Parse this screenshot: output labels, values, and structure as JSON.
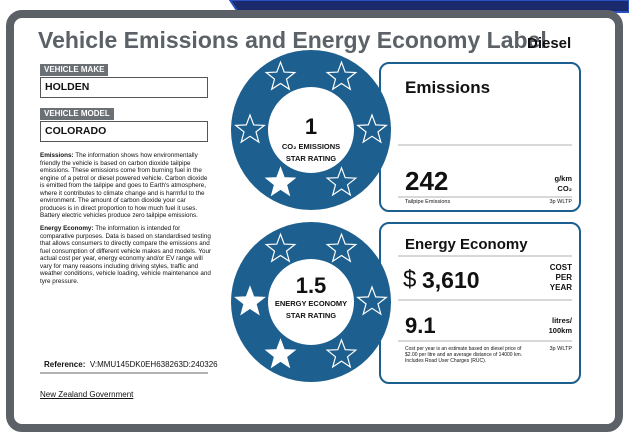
{
  "header": {
    "title": "Vehicle Emissions and Energy Economy Label",
    "fuel_type": "Diesel"
  },
  "vehicle": {
    "make_label": "VEHICLE MAKE",
    "make": "HOLDEN",
    "model_label": "VEHICLE MODEL",
    "model": "COLORADO"
  },
  "info": {
    "emissions": {
      "lead": "Emissions:",
      "text": "The information shows how environmentally friendly the vehicle is based on carbon dioxide tailpipe emissions. These emissions come from burning fuel in the engine of a petrol or diesel powered vehicle. Carbon dioxide is emitted from the tailpipe and goes to Earth's atmosphere, where it contributes to climate change and is harmful to the environment. The amount of carbon dioxide your car produces is in direct proportion to how much fuel it uses. Battery electric vehicles produce zero tailpipe emissions."
    },
    "energy": {
      "lead": "Energy Economy:",
      "text": "The information is intended for comparative purposes. Data is based on standardised testing that allows consumers to directly compare the emissions and fuel consumption of different vehicle makes and models. Your actual cost per year, energy economy and/or EV range will vary for many reasons including driving styles, traffic and weather conditions, vehicle loading, vehicle maintenance and tyre pressure."
    }
  },
  "reference": {
    "label": "Reference:",
    "value": "V:MMU145DK0EH638263D:240326"
  },
  "footer": {
    "government": "New Zealand Government"
  },
  "emissions_panel": {
    "rating": "1",
    "rating_label_1": "CO₂ EMISSIONS",
    "rating_label_2": "STAR RATING",
    "heading": "Emissions",
    "value": "242",
    "unit_1": "g/km",
    "unit_2": "CO₂",
    "caption": "Tailpipe Emissions",
    "test": "3p WLTP"
  },
  "energy_panel": {
    "rating": "1.5",
    "rating_label_1": "ENERGY ECONOMY",
    "rating_label_2": "STAR RATING",
    "heading": "Energy Economy",
    "currency": "$",
    "cost": "3,610",
    "cost_label_1": "COST",
    "cost_label_2": "PER",
    "cost_label_3": "YEAR",
    "consumption": "9.1",
    "consumption_unit_1": "litres/",
    "consumption_unit_2": "100km",
    "note": "Cost per year is an estimate based on diesel price of  $2.00 per litre and an average distance of 14000 km. Includes Road User Charges (RUC).",
    "test": "3p WLTP"
  }
}
